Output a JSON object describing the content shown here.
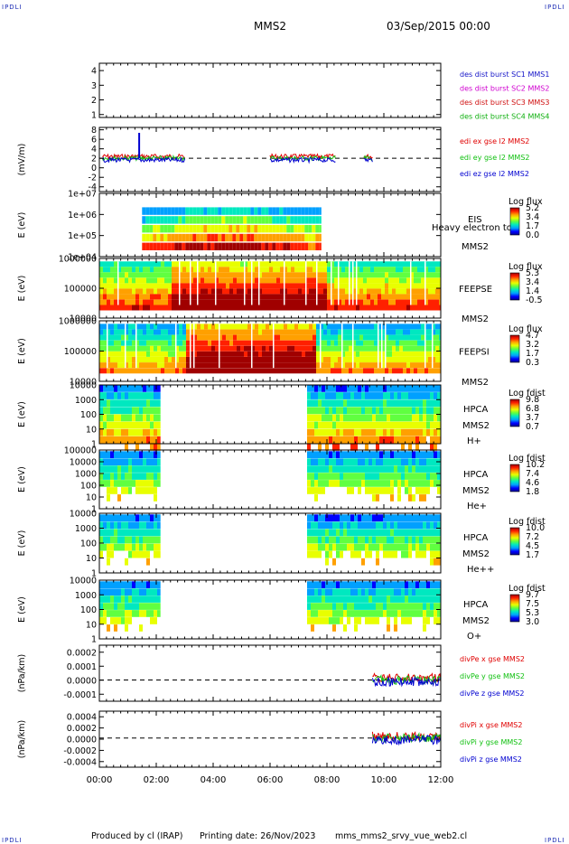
{
  "header": {
    "corner_tl": "IPDLI",
    "corner_tr": "IPDLI",
    "corner_bl": "IPDLI",
    "corner_br": "IPDLI",
    "spacecraft": "MMS2",
    "datetime": "03/Sep/2015 00:00"
  },
  "footer": {
    "produced_by": "Produced by cl (IRAP)",
    "printing_date": "Printing date: 26/Nov/2023",
    "filename": "mms_mms2_srvy_vue_web2.cl"
  },
  "colors": {
    "mms1": "#1414c8",
    "mms2": "#d000d0",
    "mms3": "#d01010",
    "mms4": "#10b010",
    "x": "#e00000",
    "y": "#10c010",
    "z": "#0000d0",
    "colorbar": [
      "#000090",
      "#0000ff",
      "#00a0ff",
      "#00e8c0",
      "#60ff40",
      "#e8ff00",
      "#ffa000",
      "#ff2000",
      "#a00000"
    ]
  },
  "chart_data": [
    {
      "type": "line",
      "title": "des dist burst",
      "yticks": [
        "1",
        "2",
        "3",
        "4"
      ],
      "ylim": [
        0.8,
        4.5
      ],
      "legend": [
        "des dist burst SC1 MMS1",
        "des dist burst SC2 MMS2",
        "des dist burst SC3 MMS3",
        "des dist burst SC4 MMS4"
      ],
      "series": []
    },
    {
      "type": "line",
      "ylabel": "(mV/m)",
      "yticks": [
        "-4",
        "-2",
        "0",
        "2",
        "4",
        "6",
        "8"
      ],
      "ylim": [
        -5,
        8.5
      ],
      "legend": [
        "edi ex gse l2 MMS2",
        "edi ey gse l2 MMS2",
        "edi ez gse l2 MMS2"
      ],
      "segments_hours": [
        [
          0.1,
          3.0
        ],
        [
          6.0,
          8.3
        ],
        [
          9.3,
          9.6
        ]
      ]
    },
    {
      "type": "heatmap",
      "ylabel": "E (eV)",
      "yticks": [
        "1e+04",
        "1e+05",
        "1e+06",
        "1e+07"
      ],
      "yscale": "log",
      "instrument": [
        "EIS",
        "MMS2"
      ],
      "overlay": "Heavy electron to",
      "cbar_title": "Log flux",
      "cbar_ticks": [
        "5.2",
        "3.4",
        "1.7",
        "0.0"
      ],
      "coverage_hours": [
        [
          1.5,
          7.8
        ]
      ]
    },
    {
      "type": "heatmap",
      "ylabel": "E (eV)",
      "yticks": [
        "10000",
        "100000",
        "1000000"
      ],
      "yscale": "log",
      "instrument": [
        "FEEPSE",
        "MMS2"
      ],
      "cbar_title": "Log flux",
      "cbar_ticks": [
        "5.3",
        "3.4",
        "1.4",
        "-0.5"
      ],
      "coverage_hours": [
        [
          0,
          12
        ]
      ]
    },
    {
      "type": "heatmap",
      "ylabel": "E (eV)",
      "yticks": [
        "10000",
        "100000",
        "1000000"
      ],
      "yscale": "log",
      "instrument": [
        "FEEPSI",
        "MMS2"
      ],
      "cbar_title": "Log flux",
      "cbar_ticks": [
        "4.7",
        "3.2",
        "1.7",
        "0.3"
      ],
      "coverage_hours": [
        [
          0,
          12
        ]
      ]
    },
    {
      "type": "heatmap",
      "ylabel": "E (eV)",
      "yticks": [
        "1",
        "10",
        "100",
        "1000",
        "10000"
      ],
      "yscale": "log",
      "instrument": [
        "HPCA",
        "MMS2"
      ],
      "species": "H+",
      "cbar_title": "Log fdist",
      "cbar_ticks": [
        "9.8",
        "6.8",
        "3.7",
        "0.7"
      ],
      "coverage_hours": [
        [
          0,
          2.15
        ],
        [
          7.3,
          12
        ]
      ]
    },
    {
      "type": "heatmap",
      "ylabel": "E (eV)",
      "yticks": [
        "1",
        "10",
        "100",
        "1000",
        "10000",
        "100000"
      ],
      "yscale": "log",
      "instrument": [
        "HPCA",
        "MMS2"
      ],
      "species": "He+",
      "cbar_title": "Log fdist",
      "cbar_ticks": [
        "10.2",
        "7.4",
        "4.6",
        "1.8"
      ],
      "coverage_hours": [
        [
          0,
          2.15
        ],
        [
          7.3,
          12
        ]
      ]
    },
    {
      "type": "heatmap",
      "ylabel": "E (eV)",
      "yticks": [
        "1",
        "10",
        "100",
        "1000",
        "10000"
      ],
      "yscale": "log",
      "instrument": [
        "HPCA",
        "MMS2"
      ],
      "species": "He++",
      "cbar_title": "Log fdist",
      "cbar_ticks": [
        "10.0",
        "7.2",
        "4.5",
        "1.7"
      ],
      "coverage_hours": [
        [
          0,
          2.15
        ],
        [
          7.3,
          12
        ]
      ]
    },
    {
      "type": "heatmap",
      "ylabel": "E (eV)",
      "yticks": [
        "1",
        "10",
        "100",
        "1000",
        "10000"
      ],
      "yscale": "log",
      "instrument": [
        "HPCA",
        "MMS2"
      ],
      "species": "O+",
      "cbar_title": "Log fdist",
      "cbar_ticks": [
        "9.7",
        "7.5",
        "5.3",
        "3.0"
      ],
      "coverage_hours": [
        [
          0,
          2.15
        ],
        [
          7.3,
          12
        ]
      ]
    },
    {
      "type": "line",
      "ylabel": "(nPa/km)",
      "yticks": [
        "-0.0001",
        "0.0000",
        "0.0001",
        "0.0002"
      ],
      "ylim": [
        -0.00015,
        0.00025
      ],
      "legend": [
        "divPe x gse MMS2",
        "divPe y gse MMS2",
        "divPe z gse MMS2"
      ],
      "segments_hours": [
        [
          9.6,
          12
        ]
      ]
    },
    {
      "type": "line",
      "ylabel": "(nPa/km)",
      "yticks": [
        "-0.0004",
        "-0.0002",
        "0.0000",
        "0.0002",
        "0.0004"
      ],
      "ylim": [
        -0.0005,
        0.0005
      ],
      "legend": [
        "divPi x gse MMS2",
        "divPi y gse MMS2",
        "divPi z gse MMS2"
      ],
      "segments_hours": [
        [
          9.6,
          12
        ]
      ]
    }
  ],
  "xaxis": {
    "range_hours": [
      0,
      12
    ],
    "ticks": [
      "00:00",
      "02:00",
      "04:00",
      "06:00",
      "08:00",
      "10:00",
      "12:00"
    ]
  }
}
